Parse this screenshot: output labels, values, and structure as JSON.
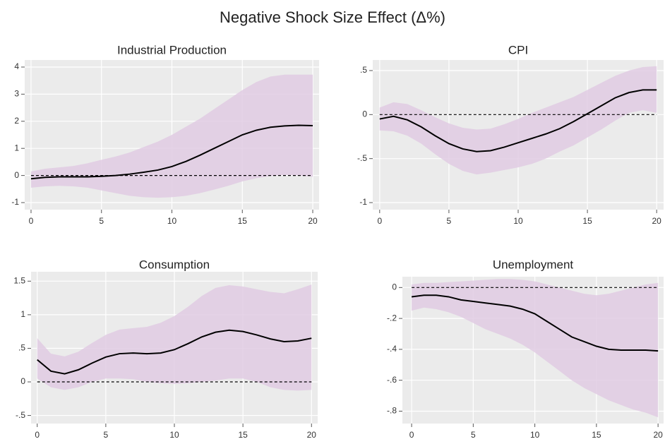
{
  "title": "Negative Shock Size Effect (Δ%)",
  "chart_data": [
    {
      "type": "line",
      "title": "Industrial Production",
      "x": [
        0,
        1,
        2,
        3,
        4,
        5,
        6,
        7,
        8,
        9,
        10,
        11,
        12,
        13,
        14,
        15,
        16,
        17,
        18,
        19,
        20
      ],
      "values": [
        -0.12,
        -0.07,
        -0.05,
        -0.05,
        -0.05,
        -0.03,
        0,
        0.05,
        0.12,
        0.2,
        0.33,
        0.52,
        0.75,
        1.0,
        1.25,
        1.5,
        1.67,
        1.78,
        1.83,
        1.85,
        1.84
      ],
      "upper": [
        0.15,
        0.25,
        0.3,
        0.35,
        0.45,
        0.58,
        0.7,
        0.85,
        1.05,
        1.25,
        1.5,
        1.8,
        2.1,
        2.45,
        2.8,
        3.15,
        3.45,
        3.65,
        3.72,
        3.72,
        3.72
      ],
      "lower": [
        -0.45,
        -0.4,
        -0.38,
        -0.4,
        -0.45,
        -0.55,
        -0.65,
        -0.75,
        -0.8,
        -0.82,
        -0.8,
        -0.75,
        -0.65,
        -0.52,
        -0.38,
        -0.22,
        -0.1,
        -0.02,
        0.02,
        0,
        -0.05
      ],
      "hline": 0,
      "color": "#000000",
      "band_color": "#e0cbe3",
      "xlim": [
        -0.45,
        20.45
      ],
      "xticks": [
        0,
        5,
        10,
        15,
        20
      ],
      "ylim": [
        -1.26,
        4.26
      ],
      "yticks": [
        -1,
        0,
        1,
        2,
        3,
        4
      ],
      "grid": true
    },
    {
      "type": "line",
      "title": "CPI",
      "x": [
        0,
        1,
        2,
        3,
        4,
        5,
        6,
        7,
        8,
        9,
        10,
        11,
        12,
        13,
        14,
        15,
        16,
        17,
        18,
        19,
        20
      ],
      "values": [
        -0.05,
        -0.02,
        -0.06,
        -0.14,
        -0.24,
        -0.33,
        -0.39,
        -0.42,
        -0.41,
        -0.37,
        -0.32,
        -0.27,
        -0.22,
        -0.16,
        -0.08,
        0.01,
        0.1,
        0.19,
        0.25,
        0.28,
        0.28
      ],
      "upper": [
        0.08,
        0.14,
        0.12,
        0.05,
        -0.03,
        -0.1,
        -0.15,
        -0.17,
        -0.16,
        -0.11,
        -0.05,
        0.02,
        0.08,
        0.14,
        0.2,
        0.28,
        0.36,
        0.44,
        0.5,
        0.54,
        0.55
      ],
      "lower": [
        -0.18,
        -0.19,
        -0.24,
        -0.33,
        -0.45,
        -0.56,
        -0.64,
        -0.68,
        -0.66,
        -0.63,
        -0.6,
        -0.56,
        -0.5,
        -0.42,
        -0.35,
        -0.26,
        -0.17,
        -0.07,
        0.02,
        0.05,
        0.02
      ],
      "hline": 0,
      "color": "#000000",
      "band_color": "#e0cbe3",
      "xlim": [
        -0.5,
        20.5
      ],
      "xticks": [
        0,
        5,
        10,
        15,
        20
      ],
      "ylim": [
        -1.08,
        0.62
      ],
      "yticks": [
        -1,
        {
          "value": -0.5,
          "label": "-.5"
        },
        0,
        {
          "value": 0.5,
          "label": ".5"
        }
      ],
      "grid": true
    },
    {
      "type": "line",
      "title": "Consumption",
      "x": [
        0,
        1,
        2,
        3,
        4,
        5,
        6,
        7,
        8,
        9,
        10,
        11,
        12,
        13,
        14,
        15,
        16,
        17,
        18,
        19,
        20
      ],
      "values": [
        0.33,
        0.16,
        0.12,
        0.18,
        0.28,
        0.37,
        0.42,
        0.43,
        0.42,
        0.43,
        0.48,
        0.57,
        0.67,
        0.74,
        0.77,
        0.75,
        0.7,
        0.64,
        0.6,
        0.61,
        0.65
      ],
      "upper": [
        0.65,
        0.42,
        0.38,
        0.45,
        0.58,
        0.7,
        0.78,
        0.8,
        0.82,
        0.88,
        0.98,
        1.12,
        1.28,
        1.4,
        1.44,
        1.42,
        1.38,
        1.34,
        1.32,
        1.38,
        1.45
      ],
      "lower": [
        0.05,
        -0.08,
        -0.12,
        -0.08,
        0,
        0.05,
        0.05,
        0.04,
        0,
        -0.02,
        -0.03,
        -0.02,
        0,
        0.02,
        0.05,
        0.05,
        0,
        -0.08,
        -0.12,
        -0.13,
        -0.12
      ],
      "hline": 0,
      "color": "#000000",
      "band_color": "#e0cbe3",
      "xlim": [
        -0.45,
        20.45
      ],
      "xticks": [
        0,
        5,
        10,
        15,
        20
      ],
      "ylim": [
        -0.62,
        1.64
      ],
      "yticks": [
        {
          "value": -0.5,
          "label": "-.5"
        },
        0,
        {
          "value": 0.5,
          "label": ".5"
        },
        1,
        1.5
      ],
      "grid": true
    },
    {
      "type": "line",
      "title": "Unemployment",
      "x": [
        0,
        1,
        2,
        3,
        4,
        5,
        6,
        7,
        8,
        9,
        10,
        11,
        12,
        13,
        14,
        15,
        16,
        17,
        18,
        19,
        20
      ],
      "values": [
        -0.06,
        -0.05,
        -0.05,
        -0.06,
        -0.08,
        -0.09,
        -0.1,
        -0.11,
        -0.12,
        -0.14,
        -0.17,
        -0.22,
        -0.27,
        -0.32,
        -0.35,
        -0.38,
        -0.4,
        -0.405,
        -0.405,
        -0.405,
        -0.41
      ],
      "upper": [
        0.02,
        0.03,
        0.03,
        0.035,
        0.04,
        0.045,
        0.05,
        0.055,
        0.055,
        0.05,
        0.04,
        0.02,
        0,
        -0.02,
        -0.04,
        -0.05,
        -0.04,
        -0.02,
        0,
        0.02,
        0.03
      ],
      "lower": [
        -0.15,
        -0.13,
        -0.14,
        -0.16,
        -0.19,
        -0.23,
        -0.27,
        -0.3,
        -0.33,
        -0.37,
        -0.42,
        -0.48,
        -0.54,
        -0.6,
        -0.65,
        -0.69,
        -0.73,
        -0.76,
        -0.79,
        -0.81,
        -0.84
      ],
      "hline": 0,
      "color": "#000000",
      "band_color": "#e0cbe3",
      "xlim": [
        -0.75,
        20.45
      ],
      "xticks": [
        0,
        5,
        10,
        15,
        20
      ],
      "ylim": [
        -0.88,
        0.07
      ],
      "yticks": [
        {
          "value": -0.8,
          "label": "-.8"
        },
        {
          "value": -0.6,
          "label": "-.6"
        },
        {
          "value": -0.4,
          "label": "-.4"
        },
        {
          "value": -0.2,
          "label": "-.2"
        },
        0
      ],
      "grid": true
    }
  ]
}
